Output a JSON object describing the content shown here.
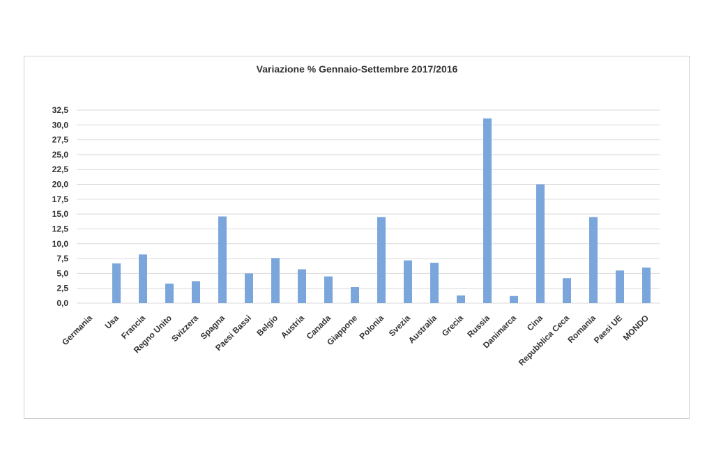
{
  "chart_data": {
    "type": "bar",
    "title": "Variazione % Gennaio-Settembre 2017/2016",
    "xlabel": "",
    "ylabel": "",
    "ylim": [
      0,
      32.5
    ],
    "yticks": [
      "0,0",
      "2,5",
      "5,0",
      "7,5",
      "10,0",
      "12,5",
      "15,0",
      "17,5",
      "20,0",
      "22,5",
      "25,0",
      "27,5",
      "30,0",
      "32,5"
    ],
    "categories": [
      "Germania",
      "Usa",
      "Francia",
      "Regno Unito",
      "Svizzera",
      "Spagna",
      "Paesi Bassi",
      "Belgio",
      "Austria",
      "Canada",
      "Giappone",
      "Polonia",
      "Svezia",
      "Australia",
      "Grecia",
      "Russia",
      "Danimarca",
      "Cina",
      "Repubblica Ceca",
      "Romania",
      "Paesi UE",
      "MONDO"
    ],
    "values": [
      0,
      6.7,
      8.2,
      3.3,
      3.7,
      14.6,
      5.0,
      7.6,
      5.7,
      4.5,
      2.7,
      14.5,
      7.2,
      6.8,
      1.3,
      31.1,
      1.2,
      20.0,
      4.2,
      14.5,
      5.5,
      6.0
    ],
    "color": "#7aa6dc",
    "grid": true,
    "legend": "none"
  }
}
